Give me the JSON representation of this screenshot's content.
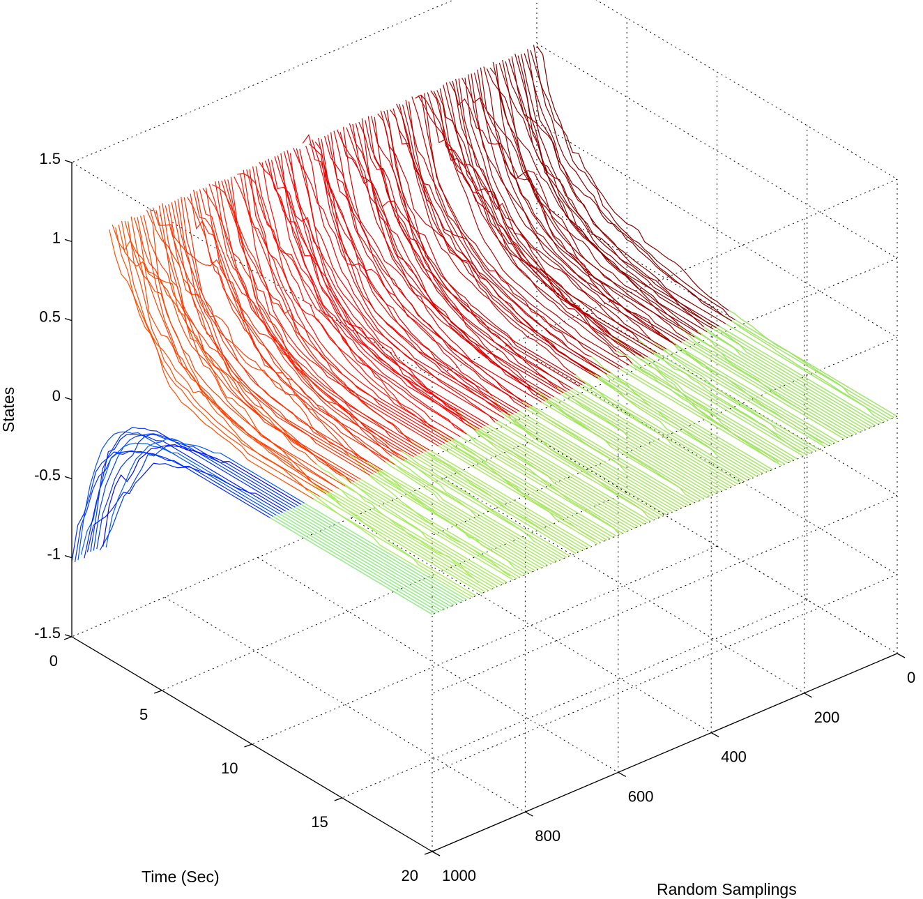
{
  "chart_data": {
    "type": "line",
    "subtype": "3d-waterfall",
    "title": "",
    "xlabel": "Time (Sec)",
    "ylabel": "Random Samplings",
    "zlabel": "States",
    "time_range": [
      0,
      20
    ],
    "time_ticks": [
      "0",
      "5",
      "10",
      "15",
      "20"
    ],
    "time_tick_values": [
      0,
      5,
      10,
      15,
      20
    ],
    "sampling_range": [
      0,
      1000
    ],
    "sampling_ticks": [
      "0",
      "200",
      "400",
      "600",
      "800",
      "1000"
    ],
    "sampling_tick_values": [
      0,
      200,
      400,
      600,
      800,
      1000
    ],
    "states_range": [
      -1.5,
      1.5
    ],
    "states_ticks": [
      "-1.5",
      "-1",
      "-0.5",
      "0",
      "0.5",
      "1",
      "1.5"
    ],
    "states_tick_values": [
      -1.5,
      -1,
      -0.5,
      0,
      0.5,
      1,
      1.5
    ],
    "grid": true,
    "colormap": "jet",
    "series_summary": {
      "trace_count": 1000,
      "initial_state_upper": 1,
      "initial_state_lower": -1,
      "final_state": 0,
      "line_color_final": "#99ff66",
      "line_color_high": "#800000",
      "line_color_low": "#0000a0"
    }
  }
}
